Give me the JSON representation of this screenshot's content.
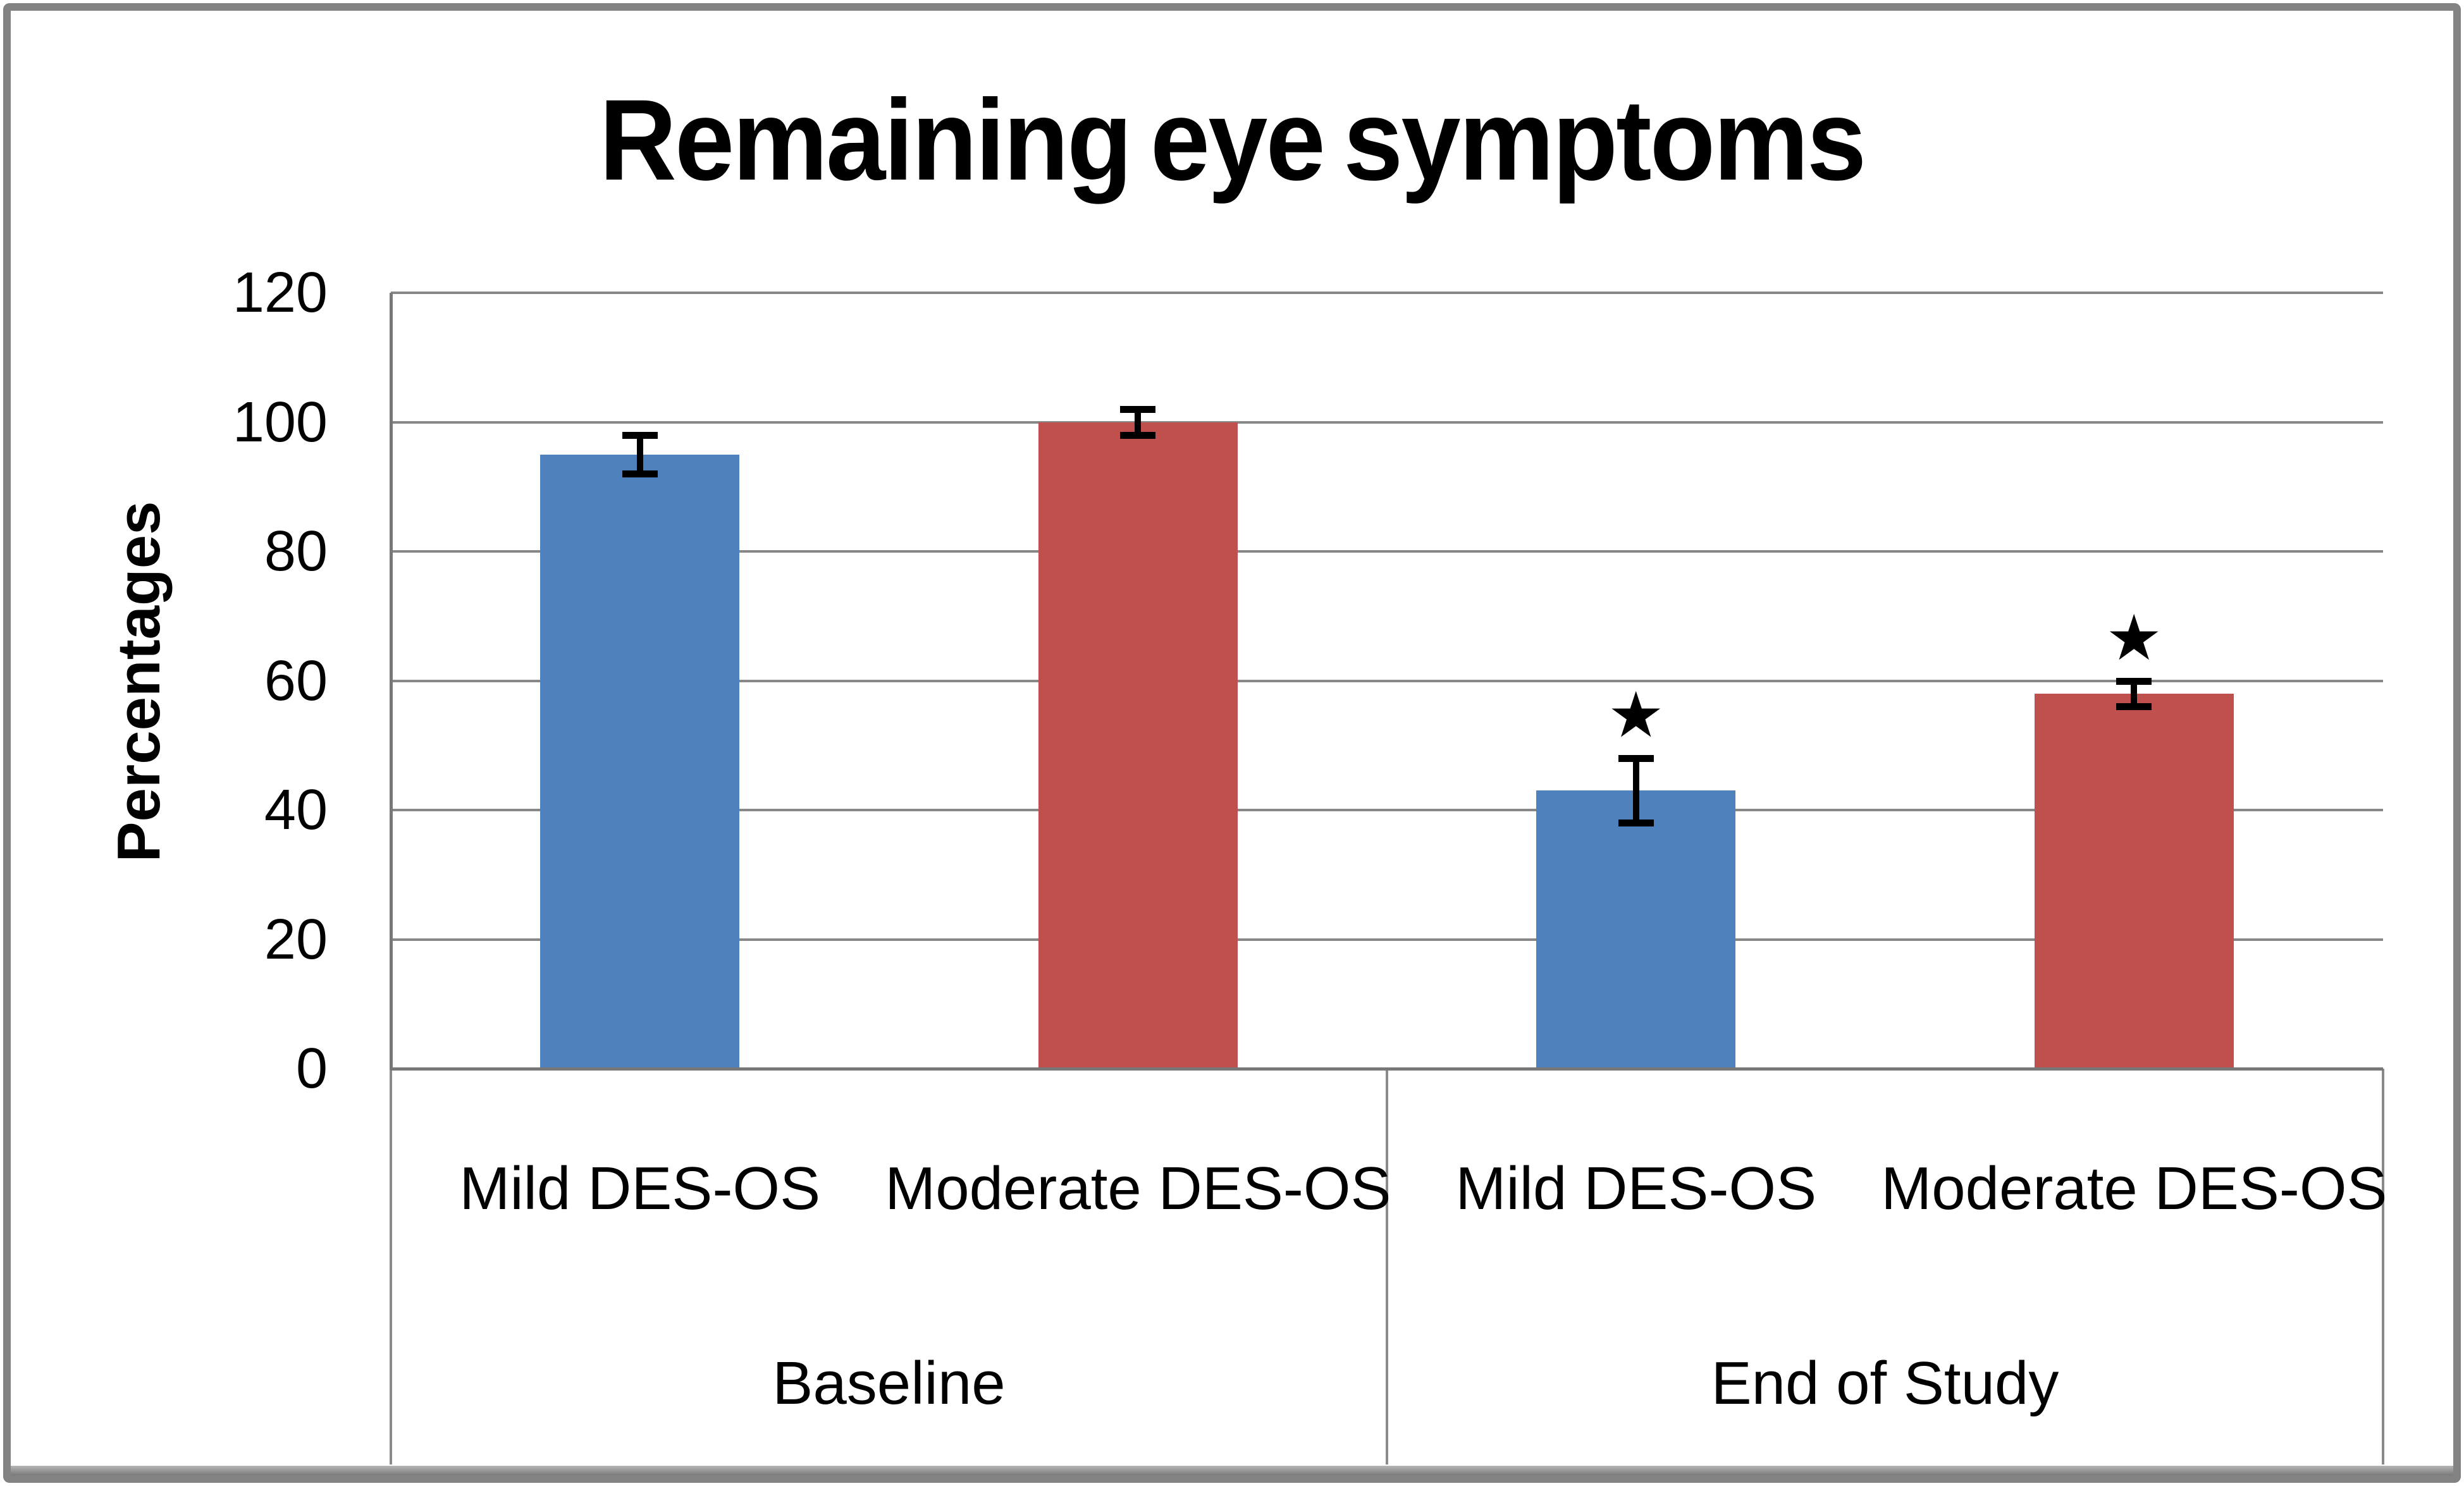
{
  "chart_data": {
    "type": "bar",
    "title": "Remaining eye symptoms",
    "xlabel": "",
    "ylabel": "Percentages",
    "ylim": [
      0,
      120
    ],
    "yticks": [
      0,
      20,
      40,
      60,
      80,
      100,
      120
    ],
    "grid": true,
    "legend": false,
    "groups": [
      "Baseline",
      "End of Study"
    ],
    "categories": [
      "Mild DES-OS",
      "Moderate DES-OS",
      "Mild DES-OS",
      "Moderate DES-OS"
    ],
    "category_group_index": [
      0,
      0,
      1,
      1
    ],
    "values": [
      95,
      100,
      43,
      58
    ],
    "error_bars": [
      3,
      2,
      5,
      2
    ],
    "bar_colors": [
      "#4F81BD",
      "#C0504D",
      "#4F81BD",
      "#C0504D"
    ],
    "significance_stars": [
      false,
      false,
      true,
      true
    ],
    "star_symbol": "★"
  },
  "colors": {
    "series_blue": "#4F81BD",
    "series_red": "#C0504D",
    "gridline": "#878787",
    "axis": "#787878",
    "frame": "#828282",
    "text": "#000000",
    "background": "#ffffff"
  }
}
